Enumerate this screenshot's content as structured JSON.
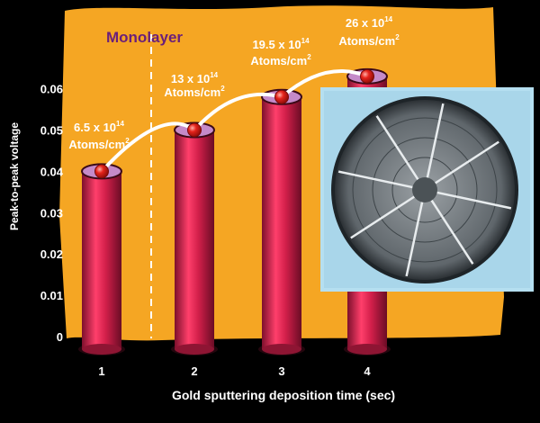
{
  "chart_data": {
    "type": "bar",
    "title": "",
    "xlabel": "Gold sputtering deposition time (sec)",
    "ylabel": "Peak-to-peak voltage",
    "categories": [
      "1",
      "2",
      "3",
      "4"
    ],
    "values": [
      0.04,
      0.05,
      0.058,
      0.063
    ],
    "ylim": [
      0,
      0.068
    ],
    "yticks": [
      "0",
      "0.01",
      "0.02",
      "0.03",
      "0.04",
      "0.05",
      "0.06"
    ],
    "grid": false,
    "annotations": [
      {
        "label": "Monolayer"
      },
      {
        "value": "6.5 x 10",
        "exp": "14",
        "unit": "Atoms/cm",
        "unit_exp": "2"
      },
      {
        "value": "13 x 10",
        "exp": "14",
        "unit": "Atoms/cm",
        "unit_exp": "2"
      },
      {
        "value": "19.5 x 10",
        "exp": "14",
        "unit": "Atoms/cm",
        "unit_exp": "2"
      },
      {
        "value": "26 x 10",
        "exp": "14",
        "unit": "Atoms/cm",
        "unit_exp": "2"
      }
    ],
    "colors": {
      "panel": "#f5a623",
      "bar": "#d21f4a",
      "bar_top": "#c58ac9",
      "marker": "#e5231b",
      "trend_line": "#ffffff",
      "monolayer_label": "#6a1f7a"
    }
  }
}
